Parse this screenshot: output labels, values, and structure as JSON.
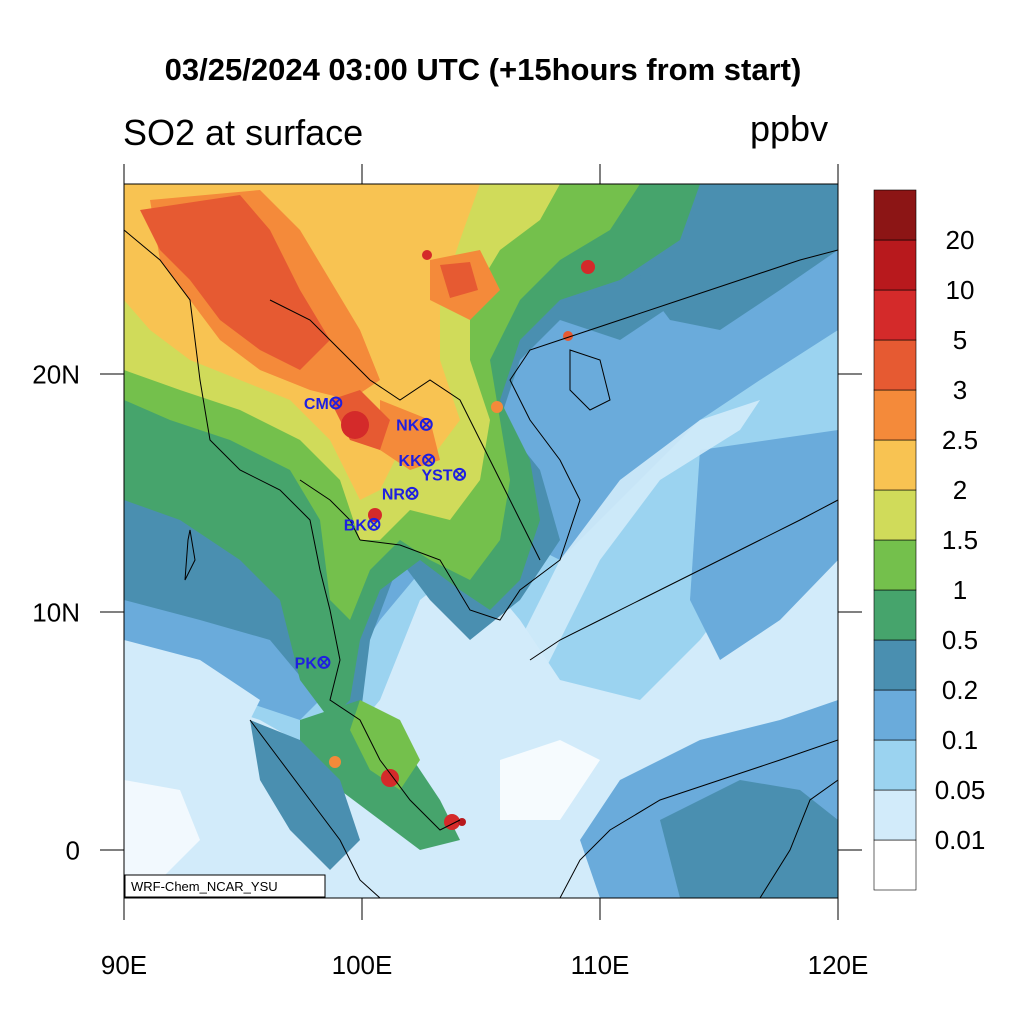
{
  "title": "03/25/2024 03:00 UTC (+15hours from start)",
  "variable": "SO2 at surface",
  "units": "ppbv",
  "model_tag": "WRF-Chem_NCAR_YSU",
  "map": {
    "lon_range": [
      90,
      120
    ],
    "lat_range": [
      -2,
      28
    ],
    "x_ticks": [
      {
        "value": 90,
        "label": "90E"
      },
      {
        "value": 100,
        "label": "100E"
      },
      {
        "value": 110,
        "label": "110E"
      },
      {
        "value": 120,
        "label": "120E"
      }
    ],
    "y_ticks": [
      {
        "value": 20,
        "label": "20N"
      },
      {
        "value": 10,
        "label": "10N"
      },
      {
        "value": 0,
        "label": "0"
      }
    ]
  },
  "stations": [
    {
      "code": "CM",
      "lon": 98.9,
      "lat": 18.8
    },
    {
      "code": "NK",
      "lon": 102.7,
      "lat": 17.9
    },
    {
      "code": "KK",
      "lon": 102.8,
      "lat": 16.4
    },
    {
      "code": "YST",
      "lon": 104.1,
      "lat": 15.8
    },
    {
      "code": "NR",
      "lon": 102.1,
      "lat": 15.0
    },
    {
      "code": "BK",
      "lon": 100.5,
      "lat": 13.7
    },
    {
      "code": "PK",
      "lon": 98.4,
      "lat": 7.9
    }
  ],
  "colorbar": {
    "colors": [
      "#ffffff",
      "#d2ebfa",
      "#9bd3f0",
      "#6aabdb",
      "#4a8fb0",
      "#46a46c",
      "#74c04c",
      "#d0db5a",
      "#f8c352",
      "#f48a3a",
      "#e65a32",
      "#d42a2a",
      "#b8191d",
      "#8c1515"
    ],
    "labels": [
      "0.01",
      "0.05",
      "0.1",
      "0.2",
      "0.5",
      "1",
      "1.5",
      "2",
      "2.5",
      "3",
      "5",
      "10",
      "20"
    ]
  }
}
